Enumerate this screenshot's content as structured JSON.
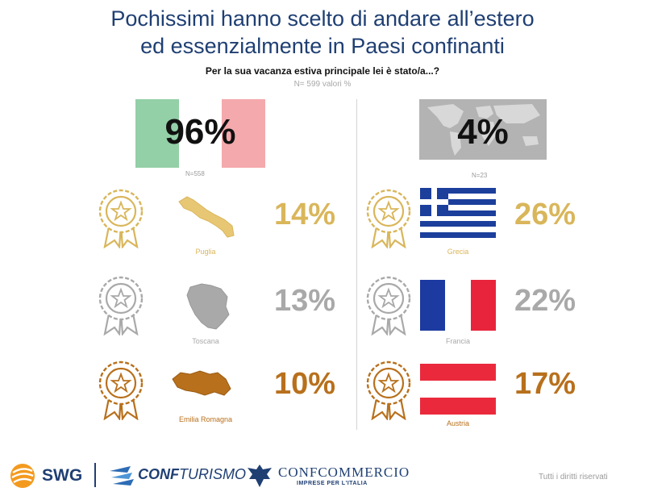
{
  "header": {
    "title_line1": "Pochissimi hanno scelto di andare all’estero",
    "title_line2": "ed essenzialmente in Paesi confinanti",
    "question": "Per la sua vacanza estiva principale lei è stato/a...?",
    "sample": "N= 599  valori %"
  },
  "italy": {
    "percent": "96%",
    "n_label": "N=558",
    "items": [
      {
        "rank": "gold",
        "name": "Puglia",
        "percent": "14%"
      },
      {
        "rank": "silver",
        "name": "Toscana",
        "percent": "13%"
      },
      {
        "rank": "bronze",
        "name": "Emilia Romagna",
        "percent": "10%"
      }
    ]
  },
  "abroad": {
    "percent": "4%",
    "n_label": "N=23",
    "items": [
      {
        "rank": "gold",
        "name": "Grecia",
        "percent": "26%"
      },
      {
        "rank": "silver",
        "name": "Francia",
        "percent": "22%"
      },
      {
        "rank": "bronze",
        "name": "Austria",
        "percent": "17%"
      }
    ]
  },
  "colors": {
    "gold": "#d9b65a",
    "silver": "#a9a9a9",
    "bronze": "#b8701c",
    "title": "#1f3f73"
  },
  "footer": {
    "swg": "SWG",
    "confturismo_a": "CONF",
    "confturismo_b": "TURISMO",
    "confcommercio": "CONFCOMMERCIO",
    "confcommercio_sub": "IMPRESE PER L'ITALIA",
    "rights": "Tutti i diritti riservati"
  }
}
